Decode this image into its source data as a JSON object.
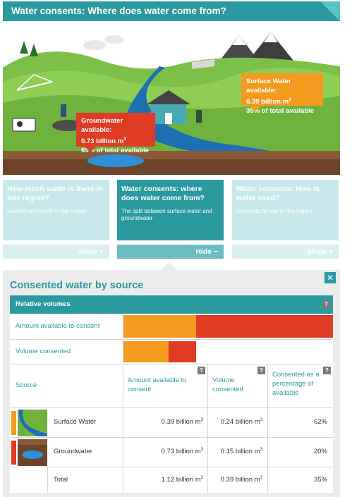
{
  "header": {
    "title": "Water consents: Where does water come from?"
  },
  "illustration": {
    "groundwater_callout": {
      "title": "Groundwater available:",
      "value": "0.73 billion m",
      "share": "65% of total available"
    },
    "surface_callout": {
      "title": "Surface Water available:",
      "value": "0.39 billion m",
      "share": "35% of total available"
    }
  },
  "cards": [
    {
      "title": "How much water is there in this region?",
      "subtitle": "Rainfall and runoff in this region",
      "toggle": "Show +"
    },
    {
      "title": "Water consents: where does water come from?",
      "subtitle": "The split between surface water and groundwater",
      "toggle": "Hide −"
    },
    {
      "title": "Water consents: How is water used?",
      "subtitle": "Consents by use in this region",
      "toggle": "Show +"
    }
  ],
  "panel": {
    "title": "Consented water by source",
    "close_icon": "close-icon",
    "relative_header": "Relative volumes",
    "rows": {
      "available_label": "Amount available to consent",
      "consented_label": "Volume consented"
    },
    "columns": {
      "source": "Source",
      "available": "Amount available to consent",
      "consented": "Volume consented",
      "percentage": "Consented as a percentage of available"
    },
    "help_glyph": "?",
    "data": [
      {
        "source": "Surface Water",
        "available": "0.39 billion m",
        "consented": "0.24 billion m",
        "percentage": "62%",
        "color": "#f39a1f"
      },
      {
        "source": "Groundwater",
        "available": "0.73 billion m",
        "consented": "0.15 billion m",
        "percentage": "20%",
        "color": "#e03b24"
      },
      {
        "source": "Total",
        "available": "1.12 billion m",
        "consented": "0.39 billion m",
        "percentage": "35%"
      }
    ],
    "unit_exponent": "3"
  },
  "chart_data": {
    "type": "bar",
    "orientation": "horizontal-stacked",
    "categories": [
      "Amount available to consent",
      "Volume consented"
    ],
    "series": [
      {
        "name": "Surface Water",
        "values": [
          0.39,
          0.24
        ]
      },
      {
        "name": "Groundwater",
        "values": [
          0.73,
          0.15
        ]
      }
    ],
    "xlim": [
      0,
      1.12
    ],
    "colors": {
      "surface": "#f39a1f",
      "ground": "#e03b24"
    }
  },
  "colors": {
    "accent": "#2a9aa0",
    "accent_light": "#c7e9eb",
    "surface": "#f39a1f",
    "ground": "#e03b24"
  }
}
